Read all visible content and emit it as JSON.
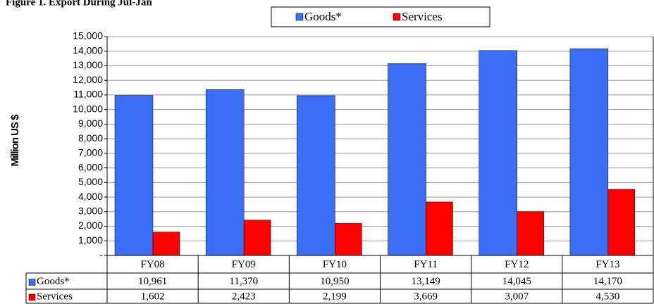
{
  "chart_data": {
    "type": "bar",
    "title": "Figure 1. Export During Jul-Jan",
    "y_label": "Million US $",
    "categories": [
      "FY08",
      "FY09",
      "FY10",
      "FY11",
      "FY12",
      "FY13"
    ],
    "series": [
      {
        "name": "Goods*",
        "color": "#3a6ef5",
        "values": [
          10961,
          11370,
          10950,
          13149,
          14045,
          14170
        ],
        "value_labels": [
          "10,961",
          "11,370",
          "10,950",
          "13,149",
          "14,045",
          "14,170"
        ]
      },
      {
        "name": "Services",
        "color": "#ff0000",
        "values": [
          1602,
          2423,
          2199,
          3669,
          3007,
          4530
        ],
        "value_labels": [
          "1,602",
          "2,423",
          "2,199",
          "3,669",
          "3,007",
          "4,530"
        ]
      }
    ],
    "ylim": [
      0,
      15000
    ],
    "yticks": [
      {
        "value": 0,
        "label": "-"
      },
      {
        "value": 1000,
        "label": "1,000"
      },
      {
        "value": 2000,
        "label": "2,000"
      },
      {
        "value": 3000,
        "label": "3,000"
      },
      {
        "value": 4000,
        "label": "4,000"
      },
      {
        "value": 5000,
        "label": "5,000"
      },
      {
        "value": 6000,
        "label": "6,000"
      },
      {
        "value": 7000,
        "label": "7,000"
      },
      {
        "value": 8000,
        "label": "8,000"
      },
      {
        "value": 9000,
        "label": "9,000"
      },
      {
        "value": 10000,
        "label": "10,000"
      },
      {
        "value": 11000,
        "label": "11,000"
      },
      {
        "value": 12000,
        "label": "12,000"
      },
      {
        "value": 13000,
        "label": "13,000"
      },
      {
        "value": 14000,
        "label": "14,000"
      },
      {
        "value": 15000,
        "label": "15,000"
      }
    ],
    "grid": true,
    "legend": "top"
  }
}
